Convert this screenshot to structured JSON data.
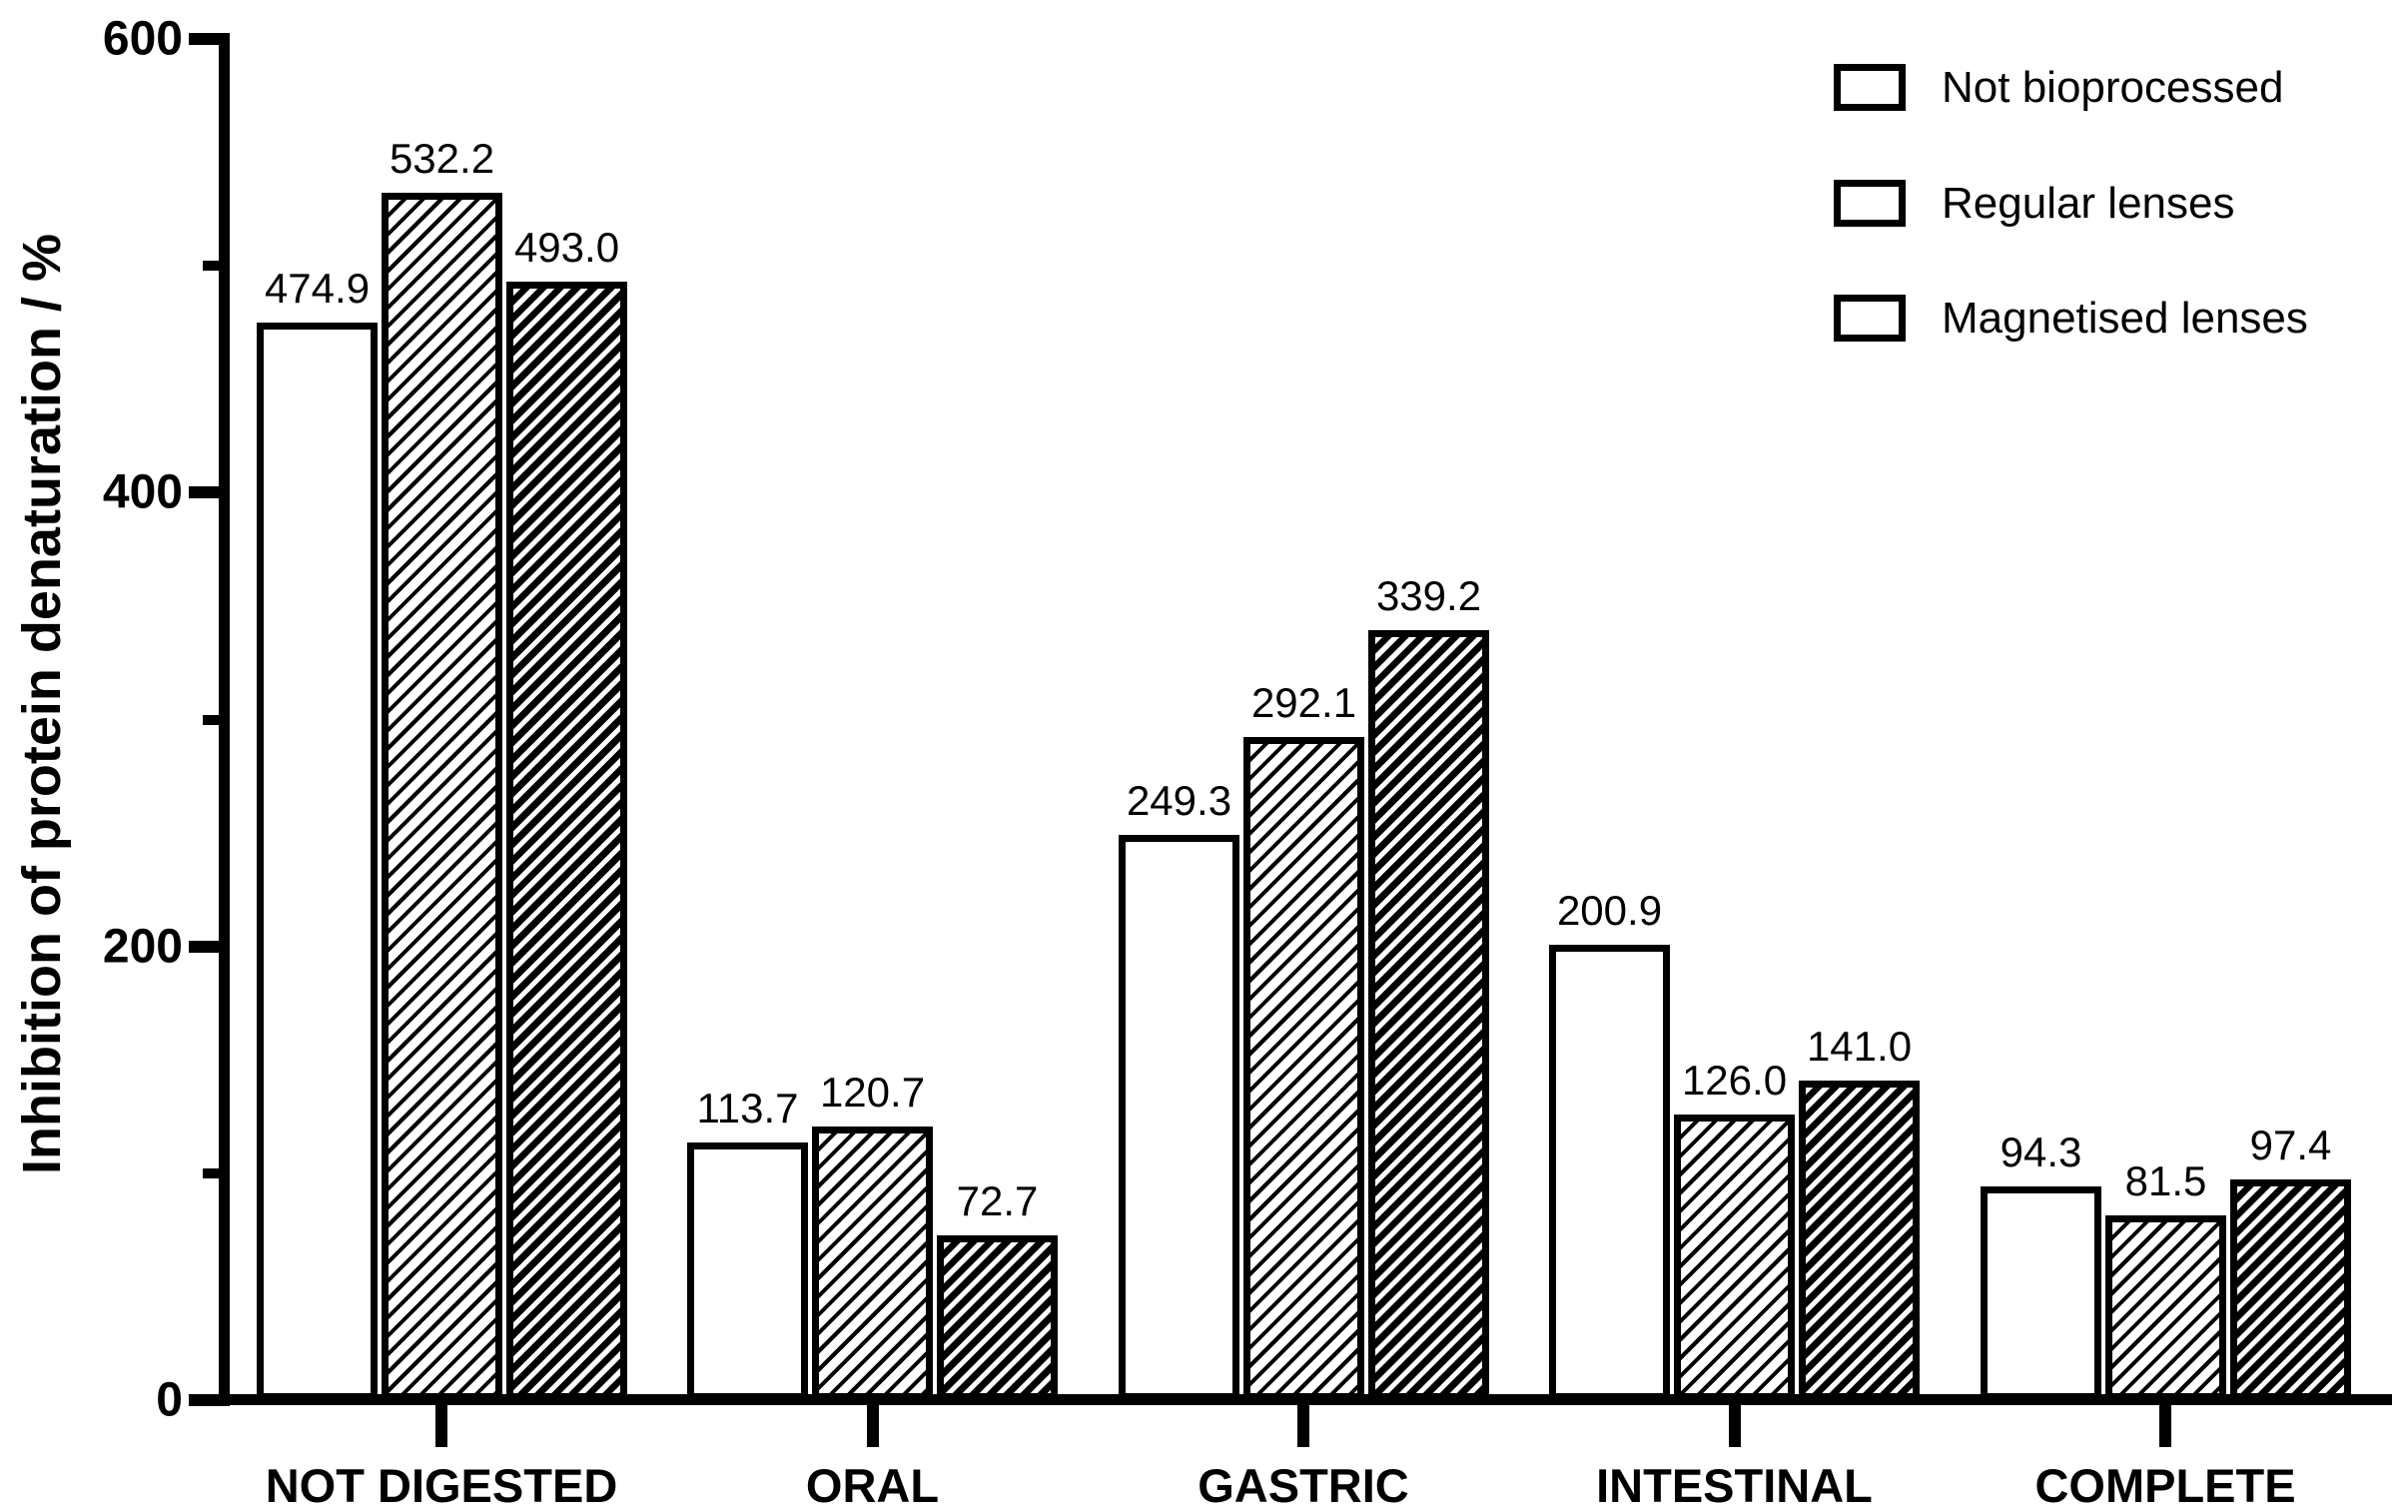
{
  "chart_data": {
    "type": "bar",
    "title": "",
    "xlabel": "",
    "ylabel": "Inhibition of protein denaturation / %",
    "ylim": [
      0,
      600
    ],
    "yticks_major": [
      0,
      200,
      400,
      600
    ],
    "yticks_minor": [
      100,
      300,
      500
    ],
    "grid": false,
    "legend_position": "top-right",
    "value_label_decimals": 1,
    "categories": [
      "NOT DIGESTED",
      "ORAL",
      "GASTRIC",
      "INTESTINAL",
      "COMPLETE"
    ],
    "series": [
      {
        "name": "Not bioprocessed",
        "fill": "white",
        "values": [
          474.9,
          113.7,
          249.3,
          200.9,
          94.3
        ]
      },
      {
        "name": "Regular lenses",
        "fill": "hatch-light",
        "values": [
          532.2,
          120.7,
          292.1,
          126.0,
          81.5
        ]
      },
      {
        "name": "Magnetised lenses",
        "fill": "hatch-dense",
        "values": [
          493.0,
          72.7,
          339.2,
          141.0,
          97.4
        ]
      }
    ],
    "colors": {
      "foreground": "#000000",
      "background": "#ffffff"
    }
  }
}
